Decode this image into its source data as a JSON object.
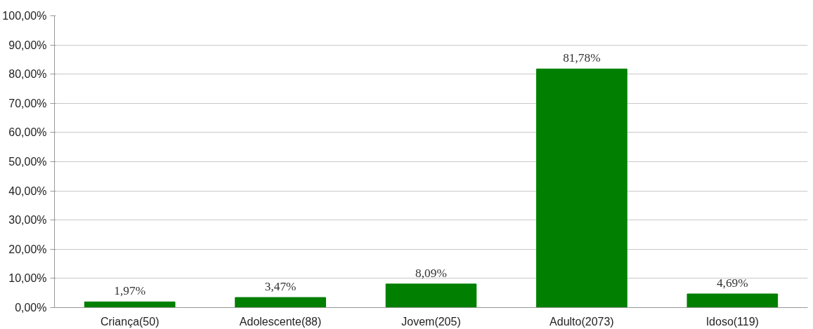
{
  "chart_data": {
    "type": "bar",
    "categories": [
      "Criança(50)",
      "Adolescente(88)",
      "Jovem(205)",
      "Adulto(2073)",
      "Idoso(119)"
    ],
    "values": [
      1.97,
      3.47,
      8.09,
      81.78,
      4.69
    ],
    "value_labels": [
      "1,97%",
      "3,47%",
      "8,09%",
      "81,78%",
      "4,69%"
    ],
    "color": "#007f00",
    "ylim": [
      0,
      100
    ],
    "yticks": [
      {
        "value": 0,
        "label": "0,00%"
      },
      {
        "value": 10,
        "label": "10,00%"
      },
      {
        "value": 20,
        "label": "20,00%"
      },
      {
        "value": 30,
        "label": "30,00%"
      },
      {
        "value": 40,
        "label": "40,00%"
      },
      {
        "value": 50,
        "label": "50,00%"
      },
      {
        "value": 60,
        "label": "60,00%"
      },
      {
        "value": 70,
        "label": "70,00%"
      },
      {
        "value": 80,
        "label": "80,00%"
      },
      {
        "value": 90,
        "label": "90,00%"
      },
      {
        "value": 100,
        "label": "100,00%"
      }
    ],
    "grid": "y"
  }
}
